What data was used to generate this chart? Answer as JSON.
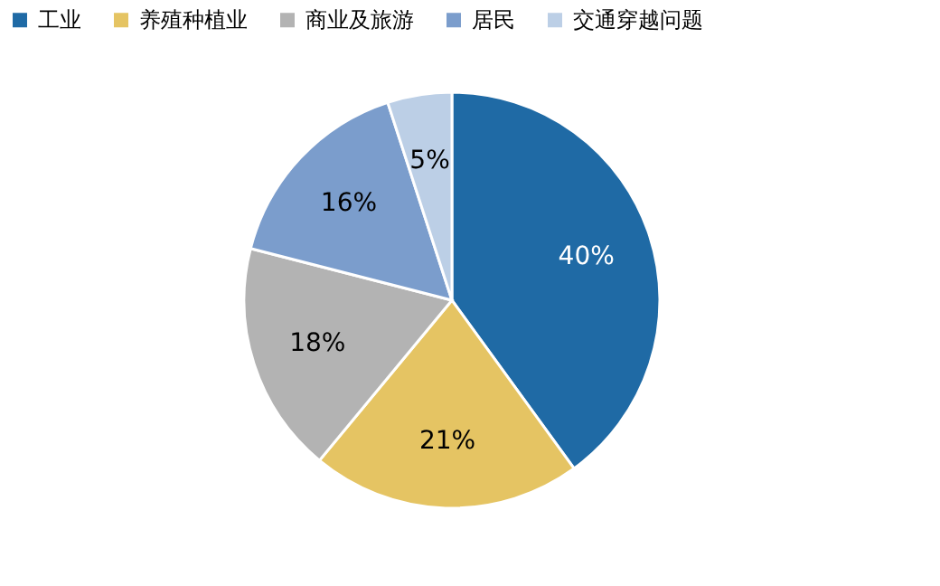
{
  "chart_data": {
    "type": "pie",
    "categories": [
      "工业",
      "养殖种植业",
      "商业及旅游",
      "居民",
      "交通穿越问题"
    ],
    "values": [
      40,
      21,
      18,
      16,
      5
    ],
    "colors": [
      "#1f6aa5",
      "#e5c463",
      "#b3b3b3",
      "#7b9dcc",
      "#bccfe6"
    ],
    "value_labels": [
      "40%",
      "21%",
      "18%",
      "16%",
      "5%"
    ],
    "legend": "top"
  }
}
